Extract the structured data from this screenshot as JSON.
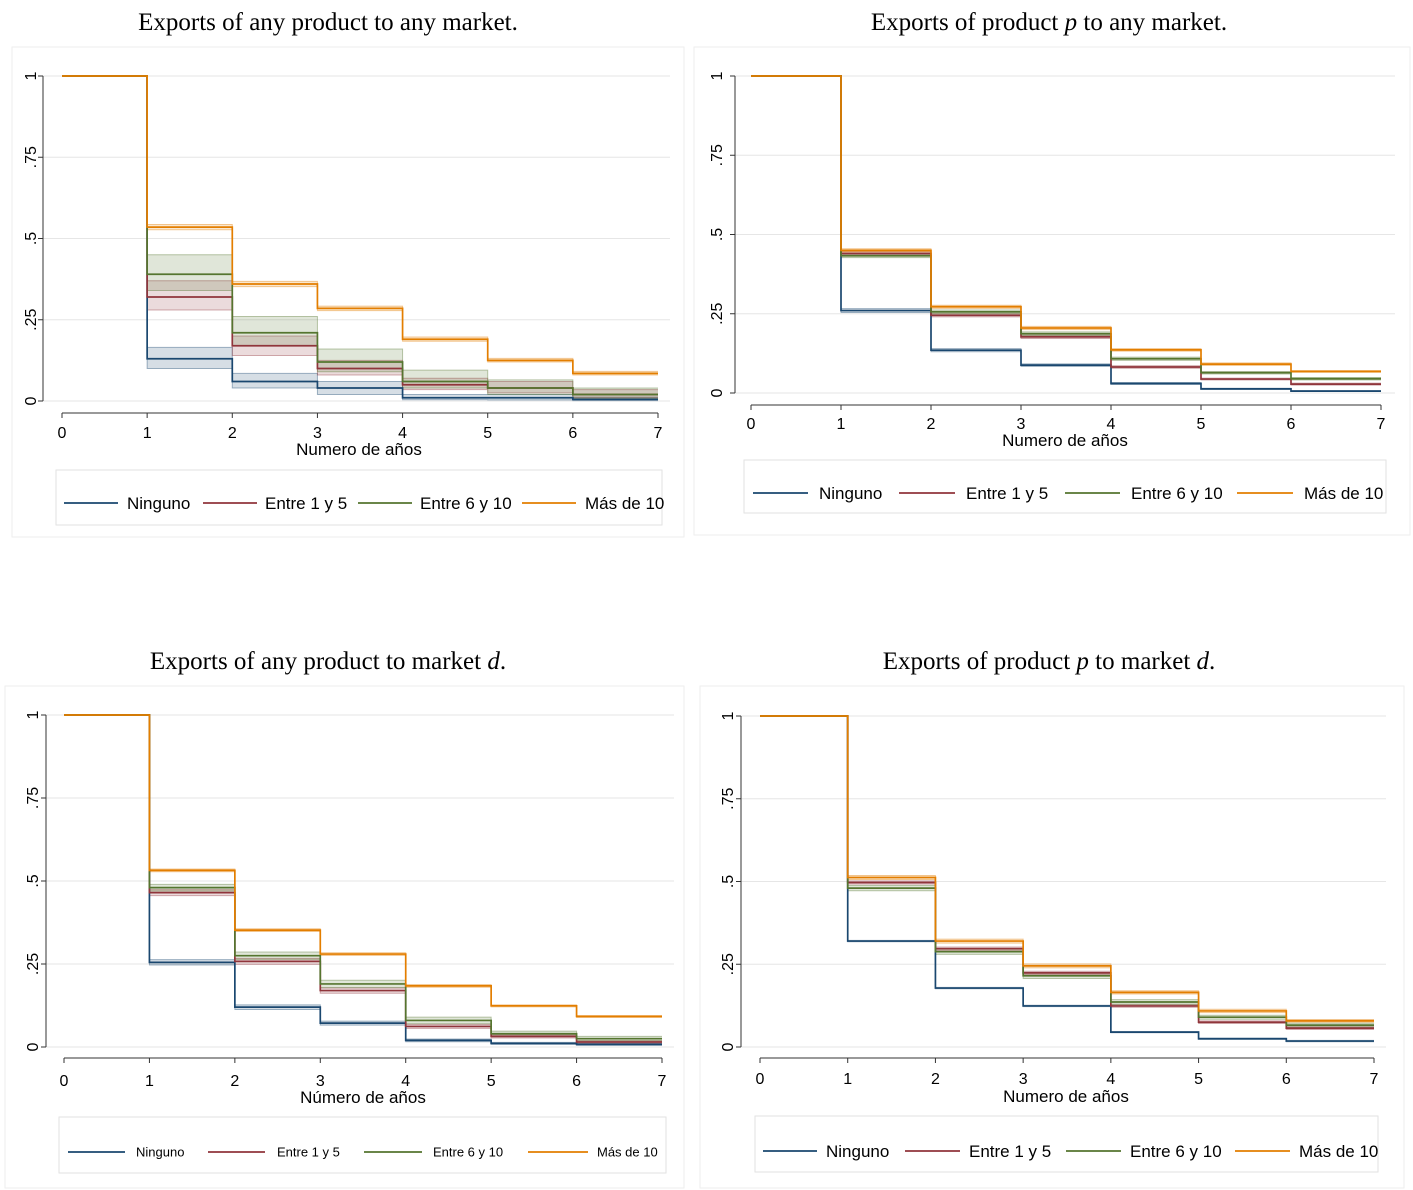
{
  "chart_data": [
    {
      "type": "line",
      "step": true,
      "title": [
        {
          "text": "Exports of any product to any market.",
          "italic": false
        }
      ],
      "xlabel": "Numero de años",
      "xlim": [
        0,
        7
      ],
      "ylim": [
        0,
        1
      ],
      "xticks": [
        0,
        1,
        2,
        3,
        4,
        5,
        6,
        7
      ],
      "xtick_labels": [
        "0",
        "1",
        "2",
        "3",
        "4",
        "5",
        "6",
        "7"
      ],
      "yticks": [
        0,
        0.25,
        0.5,
        0.75,
        1
      ],
      "ytick_labels": [
        "0",
        ".25",
        ".5",
        ".75",
        "1"
      ],
      "grid": "horizontal",
      "legend": "bottom",
      "x": [
        0,
        1,
        2,
        3,
        4,
        5,
        6,
        7
      ],
      "series": [
        {
          "name": "Ninguno",
          "color": "#1a476f",
          "values": [
            1,
            0.13,
            0.06,
            0.04,
            0.01,
            0.01,
            0.005,
            0.005
          ],
          "ci_lower": [
            1,
            0.1,
            0.04,
            0.02,
            0.004,
            0.003,
            0.001,
            0.001
          ],
          "ci_upper": [
            1,
            0.165,
            0.085,
            0.06,
            0.02,
            0.02,
            0.012,
            0.012
          ]
        },
        {
          "name": "Entre 1 y 5",
          "color": "#90353b",
          "values": [
            1,
            0.32,
            0.17,
            0.1,
            0.05,
            0.04,
            0.02,
            0.02
          ],
          "ci_lower": [
            1,
            0.28,
            0.14,
            0.08,
            0.035,
            0.025,
            0.01,
            0.01
          ],
          "ci_upper": [
            1,
            0.37,
            0.2,
            0.125,
            0.07,
            0.06,
            0.035,
            0.035
          ]
        },
        {
          "name": "Entre 6 y 10",
          "color": "#55752f",
          "values": [
            1,
            0.39,
            0.21,
            0.12,
            0.06,
            0.04,
            0.02,
            0.02
          ],
          "ci_lower": [
            1,
            0.34,
            0.17,
            0.09,
            0.04,
            0.02,
            0.008,
            0.008
          ],
          "ci_upper": [
            1,
            0.45,
            0.26,
            0.16,
            0.095,
            0.065,
            0.04,
            0.04
          ]
        },
        {
          "name": "Más de 10",
          "color": "#e37e00",
          "values": [
            1,
            0.535,
            0.36,
            0.285,
            0.19,
            0.125,
            0.085,
            0.085
          ],
          "ci_lower": [
            1,
            0.527,
            0.352,
            0.278,
            0.184,
            0.12,
            0.08,
            0.08
          ],
          "ci_upper": [
            1,
            0.543,
            0.368,
            0.292,
            0.197,
            0.131,
            0.091,
            0.091
          ]
        }
      ]
    },
    {
      "type": "line",
      "step": true,
      "title": [
        {
          "text": "Exports of product ",
          "italic": false
        },
        {
          "text": "p",
          "italic": true
        },
        {
          "text": " to any market.",
          "italic": false
        }
      ],
      "xlabel": "Numero de años",
      "xlim": [
        0,
        7
      ],
      "ylim": [
        0,
        1
      ],
      "xticks": [
        0,
        1,
        2,
        3,
        4,
        5,
        6,
        7
      ],
      "xtick_labels": [
        "0",
        "1",
        "2",
        "3",
        "4",
        "5",
        "6",
        "7"
      ],
      "yticks": [
        0,
        0.25,
        0.5,
        0.75,
        1
      ],
      "ytick_labels": [
        "0",
        ".25",
        ".5",
        ".75",
        "1"
      ],
      "grid": "horizontal",
      "legend": "bottom",
      "x": [
        0,
        1,
        2,
        3,
        4,
        5,
        6,
        7
      ],
      "series": [
        {
          "name": "Ninguno",
          "color": "#1a476f",
          "values": [
            1,
            0.26,
            0.135,
            0.088,
            0.03,
            0.013,
            0.006,
            0.006
          ],
          "ci_lower": [
            1,
            0.254,
            0.13,
            0.084,
            0.027,
            0.011,
            0.005,
            0.005
          ],
          "ci_upper": [
            1,
            0.266,
            0.14,
            0.092,
            0.033,
            0.015,
            0.008,
            0.008
          ]
        },
        {
          "name": "Entre 1 y 5",
          "color": "#90353b",
          "values": [
            1,
            0.44,
            0.245,
            0.177,
            0.082,
            0.044,
            0.028,
            0.028
          ],
          "ci_lower": [
            1,
            0.434,
            0.24,
            0.172,
            0.078,
            0.041,
            0.025,
            0.025
          ],
          "ci_upper": [
            1,
            0.446,
            0.25,
            0.182,
            0.086,
            0.047,
            0.031,
            0.031
          ]
        },
        {
          "name": "Entre 6 y 10",
          "color": "#55752f",
          "values": [
            1,
            0.433,
            0.256,
            0.187,
            0.108,
            0.064,
            0.045,
            0.045
          ],
          "ci_lower": [
            1,
            0.427,
            0.25,
            0.181,
            0.103,
            0.06,
            0.041,
            0.041
          ],
          "ci_upper": [
            1,
            0.439,
            0.262,
            0.193,
            0.113,
            0.068,
            0.049,
            0.049
          ]
        },
        {
          "name": "Más de 10",
          "color": "#e37e00",
          "values": [
            1,
            0.45,
            0.272,
            0.205,
            0.136,
            0.091,
            0.068,
            0.068
          ],
          "ci_lower": [
            1,
            0.445,
            0.267,
            0.2,
            0.132,
            0.087,
            0.065,
            0.065
          ],
          "ci_upper": [
            1,
            0.455,
            0.277,
            0.21,
            0.14,
            0.095,
            0.071,
            0.071
          ]
        }
      ]
    },
    {
      "type": "line",
      "step": true,
      "title": [
        {
          "text": "Exports of any product to market ",
          "italic": false
        },
        {
          "text": "d",
          "italic": true
        },
        {
          "text": ".",
          "italic": false
        }
      ],
      "xlabel": "Número de años",
      "xlim": [
        0,
        7
      ],
      "ylim": [
        0,
        1
      ],
      "xticks": [
        0,
        1,
        2,
        3,
        4,
        5,
        6,
        7
      ],
      "xtick_labels": [
        "0",
        "1",
        "2",
        "3",
        "4",
        "5",
        "6",
        "7"
      ],
      "yticks": [
        0,
        0.25,
        0.5,
        0.75,
        1
      ],
      "ytick_labels": [
        "0",
        ".25",
        ".5",
        ".75",
        "1"
      ],
      "grid": "horizontal",
      "legend": "bottom",
      "x": [
        0,
        1,
        2,
        3,
        4,
        5,
        6,
        7
      ],
      "series": [
        {
          "name": "Ninguno",
          "color": "#1a476f",
          "values": [
            1,
            0.255,
            0.12,
            0.072,
            0.02,
            0.011,
            0.008,
            0.008
          ],
          "ci_lower": [
            1,
            0.247,
            0.113,
            0.066,
            0.016,
            0.008,
            0.005,
            0.005
          ],
          "ci_upper": [
            1,
            0.263,
            0.127,
            0.078,
            0.024,
            0.014,
            0.011,
            0.011
          ]
        },
        {
          "name": "Entre 1 y 5",
          "color": "#90353b",
          "values": [
            1,
            0.465,
            0.258,
            0.17,
            0.062,
            0.032,
            0.015,
            0.015
          ],
          "ci_lower": [
            1,
            0.456,
            0.249,
            0.162,
            0.056,
            0.027,
            0.011,
            0.011
          ],
          "ci_upper": [
            1,
            0.474,
            0.267,
            0.178,
            0.068,
            0.037,
            0.019,
            0.019
          ]
        },
        {
          "name": "Entre 6 y 10",
          "color": "#55752f",
          "values": [
            1,
            0.48,
            0.275,
            0.19,
            0.08,
            0.04,
            0.025,
            0.025
          ],
          "ci_lower": [
            1,
            0.47,
            0.264,
            0.179,
            0.07,
            0.033,
            0.019,
            0.019
          ],
          "ci_upper": [
            1,
            0.49,
            0.286,
            0.201,
            0.09,
            0.048,
            0.032,
            0.032
          ]
        },
        {
          "name": "Más de 10",
          "color": "#e37e00",
          "values": [
            1,
            0.532,
            0.352,
            0.28,
            0.184,
            0.124,
            0.092,
            0.092
          ],
          "ci_lower": [
            1,
            0.528,
            0.348,
            0.276,
            0.18,
            0.121,
            0.089,
            0.089
          ],
          "ci_upper": [
            1,
            0.536,
            0.356,
            0.284,
            0.188,
            0.127,
            0.095,
            0.095
          ]
        }
      ]
    },
    {
      "type": "line",
      "step": true,
      "title": [
        {
          "text": "Exports of product ",
          "italic": false
        },
        {
          "text": "p",
          "italic": true
        },
        {
          "text": " to market ",
          "italic": false
        },
        {
          "text": "d",
          "italic": true
        },
        {
          "text": ".",
          "italic": false
        }
      ],
      "xlabel": "Numero de años",
      "xlim": [
        0,
        7
      ],
      "ylim": [
        0,
        1
      ],
      "xticks": [
        0,
        1,
        2,
        3,
        4,
        5,
        6,
        7
      ],
      "xtick_labels": [
        "0",
        "1",
        "2",
        "3",
        "4",
        "5",
        "6",
        "7"
      ],
      "yticks": [
        0,
        0.25,
        0.5,
        0.75,
        1
      ],
      "ytick_labels": [
        "0",
        ".25",
        ".5",
        ".75",
        "1"
      ],
      "grid": "horizontal",
      "legend": "bottom",
      "x": [
        0,
        1,
        2,
        3,
        4,
        5,
        6,
        7
      ],
      "series": [
        {
          "name": "Ninguno",
          "color": "#1a476f",
          "values": [
            1,
            0.32,
            0.178,
            0.124,
            0.045,
            0.025,
            0.018,
            0.018
          ],
          "ci_lower": [
            1,
            0.318,
            0.176,
            0.122,
            0.043,
            0.023,
            0.016,
            0.016
          ],
          "ci_upper": [
            1,
            0.322,
            0.18,
            0.126,
            0.047,
            0.027,
            0.02,
            0.02
          ]
        },
        {
          "name": "Entre 1 y 5",
          "color": "#90353b",
          "values": [
            1,
            0.497,
            0.297,
            0.224,
            0.124,
            0.075,
            0.057,
            0.057
          ],
          "ci_lower": [
            1,
            0.492,
            0.292,
            0.219,
            0.12,
            0.071,
            0.053,
            0.053
          ],
          "ci_upper": [
            1,
            0.502,
            0.302,
            0.229,
            0.128,
            0.079,
            0.061,
            0.061
          ]
        },
        {
          "name": "Entre 6 y 10",
          "color": "#55752f",
          "values": [
            1,
            0.48,
            0.288,
            0.215,
            0.136,
            0.09,
            0.066,
            0.066
          ],
          "ci_lower": [
            1,
            0.472,
            0.28,
            0.207,
            0.129,
            0.084,
            0.06,
            0.06
          ],
          "ci_upper": [
            1,
            0.488,
            0.296,
            0.223,
            0.143,
            0.096,
            0.072,
            0.072
          ]
        },
        {
          "name": "Más de 10",
          "color": "#e37e00",
          "values": [
            1,
            0.512,
            0.32,
            0.245,
            0.165,
            0.109,
            0.079,
            0.079
          ],
          "ci_lower": [
            1,
            0.506,
            0.314,
            0.239,
            0.16,
            0.104,
            0.075,
            0.075
          ],
          "ci_upper": [
            1,
            0.518,
            0.326,
            0.251,
            0.17,
            0.114,
            0.083,
            0.083
          ]
        }
      ]
    }
  ]
}
